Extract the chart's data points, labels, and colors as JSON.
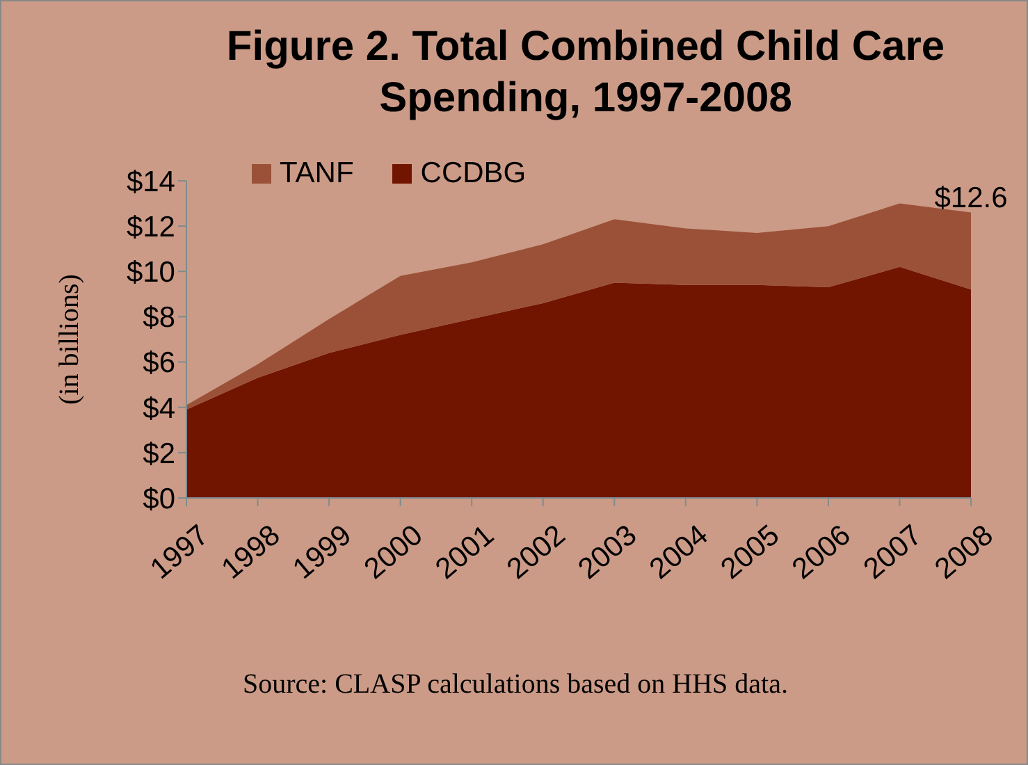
{
  "chart_data": {
    "type": "area",
    "title": "Figure 2. Total Combined Child Care Spending, 1997-2008",
    "ylabel": "(in billions)",
    "stacked": true,
    "legend": "top left",
    "categories": [
      "1997",
      "1998",
      "1999",
      "2000",
      "2001",
      "2002",
      "2003",
      "2004",
      "2005",
      "2006",
      "2007",
      "2008"
    ],
    "series": [
      {
        "name": "CCDBG",
        "color": "#711500",
        "values": [
          3.9,
          5.3,
          6.4,
          7.2,
          7.9,
          8.6,
          9.5,
          9.4,
          9.4,
          9.3,
          10.2,
          9.2
        ]
      },
      {
        "name": "TANF",
        "color": "#9a5137",
        "values": [
          0.2,
          0.6,
          1.5,
          2.6,
          2.5,
          2.6,
          2.8,
          2.5,
          2.3,
          2.7,
          2.8,
          3.4
        ]
      }
    ],
    "ylim": [
      0,
      14
    ],
    "yticks": [
      {
        "value": 0,
        "label": "$0"
      },
      {
        "value": 2,
        "label": "$2"
      },
      {
        "value": 4,
        "label": "$4"
      },
      {
        "value": 6,
        "label": "$6"
      },
      {
        "value": 8,
        "label": "$8"
      },
      {
        "value": 10,
        "label": "$10"
      },
      {
        "value": 12,
        "label": "$12"
      },
      {
        "value": 14,
        "label": "$14"
      }
    ],
    "annotations": [
      {
        "text": "$12.6",
        "x": "2008",
        "y": 12.6
      },
      "Source: CLASP calculations based on HHS data."
    ]
  }
}
